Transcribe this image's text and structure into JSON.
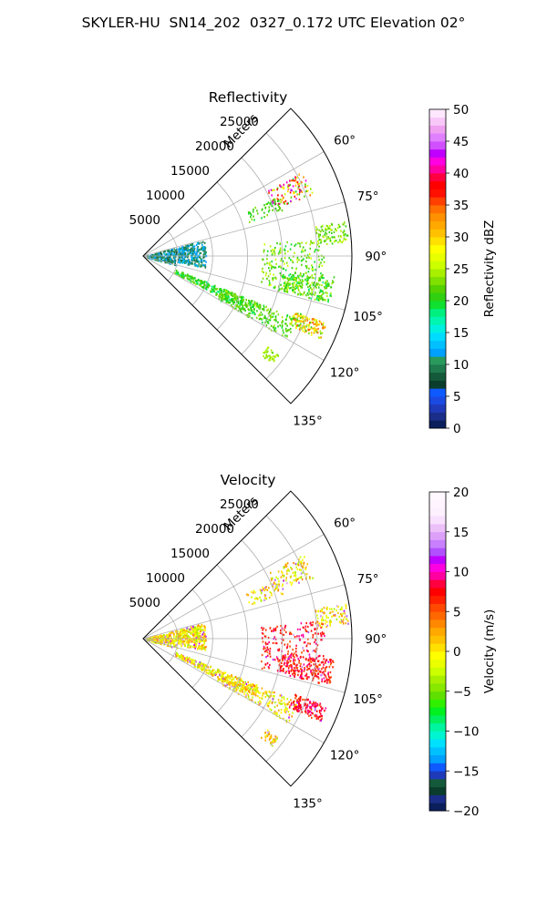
{
  "title": "SKYLER-HU  SN14_202  0327_0.172 UTC Elevation 02°",
  "chart_data": [
    {
      "type": "heatmap",
      "projection": "polar-sector",
      "title": "Reflectivity",
      "radial_axis_label": "Meters",
      "radial_ticks": [
        5000,
        10000,
        15000,
        20000,
        25000
      ],
      "radial_tick_labels": [
        "5000",
        "10000",
        "15000",
        "20000",
        "25000"
      ],
      "r_range": [
        0,
        30000
      ],
      "azimuth_range_deg": [
        45,
        135
      ],
      "angle_ticks": [
        60,
        75,
        90,
        105,
        120,
        135
      ],
      "angle_tick_labels": [
        "60°",
        "75°",
        "90°",
        "105°",
        "120°",
        "135°"
      ],
      "grid": true,
      "colorbar": {
        "label": "Reflectivity dBZ",
        "range": [
          0,
          50
        ],
        "ticks": [
          0,
          5,
          10,
          15,
          20,
          25,
          30,
          35,
          40,
          45,
          50
        ],
        "tick_labels": [
          "0",
          "5",
          "10",
          "15",
          "20",
          "25",
          "30",
          "35",
          "40",
          "45",
          "50"
        ],
        "levels": 50,
        "colors": [
          "#0b1f5c",
          "#1a2d88",
          "#1f3ab8",
          "#1b4ae3",
          "#0f5aff",
          "#0b3d2c",
          "#145a3a",
          "#1f7a4e",
          "#2a9a5c",
          "#00a0ff",
          "#00c0ff",
          "#00dcff",
          "#00f0e0",
          "#00f5b0",
          "#00f080",
          "#10e030",
          "#30d010",
          "#55d000",
          "#80e000",
          "#a8f000",
          "#ccff00",
          "#e8ff00",
          "#ffff00",
          "#ffe000",
          "#ffc000",
          "#ffa800",
          "#ff9000",
          "#ff7000",
          "#ff4000",
          "#ff1000",
          "#ff0000",
          "#ff0040",
          "#ff00a0",
          "#ff00e0",
          "#c000ff",
          "#d050ff",
          "#e080ff",
          "#f0a0f0",
          "#f8c8f8",
          "#ffe8ff"
        ]
      }
    },
    {
      "type": "heatmap",
      "projection": "polar-sector",
      "title": "Velocity",
      "radial_axis_label": "Meters",
      "radial_ticks": [
        5000,
        10000,
        15000,
        20000,
        25000
      ],
      "radial_tick_labels": [
        "5000",
        "10000",
        "15000",
        "20000",
        "25000"
      ],
      "r_range": [
        0,
        30000
      ],
      "azimuth_range_deg": [
        45,
        135
      ],
      "angle_ticks": [
        60,
        75,
        90,
        105,
        120,
        135
      ],
      "angle_tick_labels": [
        "60°",
        "75°",
        "90°",
        "105°",
        "120°",
        "135°"
      ],
      "grid": true,
      "colorbar": {
        "label": "Velocity (m/s)",
        "range": [
          -20,
          20
        ],
        "ticks": [
          -20,
          -15,
          -10,
          -5,
          0,
          5,
          10,
          15,
          20
        ],
        "tick_labels": [
          "−20",
          "−15",
          "−10",
          "−5",
          "0",
          "5",
          "10",
          "15",
          "20"
        ],
        "levels": 40,
        "colors": [
          "#0b1f5c",
          "#1a2d88",
          "#0b3d2c",
          "#145a3a",
          "#1f3ab8",
          "#0f5aff",
          "#00a0ff",
          "#00c0ff",
          "#00e0ff",
          "#00f5d0",
          "#00f5a0",
          "#00f060",
          "#00f020",
          "#30f000",
          "#60e000",
          "#88e800",
          "#a8f000",
          "#ccff00",
          "#eaff00",
          "#ffff00",
          "#ffe000",
          "#ffc000",
          "#ffa800",
          "#ff8800",
          "#ff6800",
          "#ff4800",
          "#ff2000",
          "#ff0000",
          "#ff0040",
          "#ff00a0",
          "#ff00e0",
          "#c000ff",
          "#b050ff",
          "#c880ff",
          "#dca0f8",
          "#ecc0f8",
          "#f8e0ff",
          "#fdf0ff",
          "#fff4ff",
          "#fff8ff"
        ]
      }
    }
  ]
}
